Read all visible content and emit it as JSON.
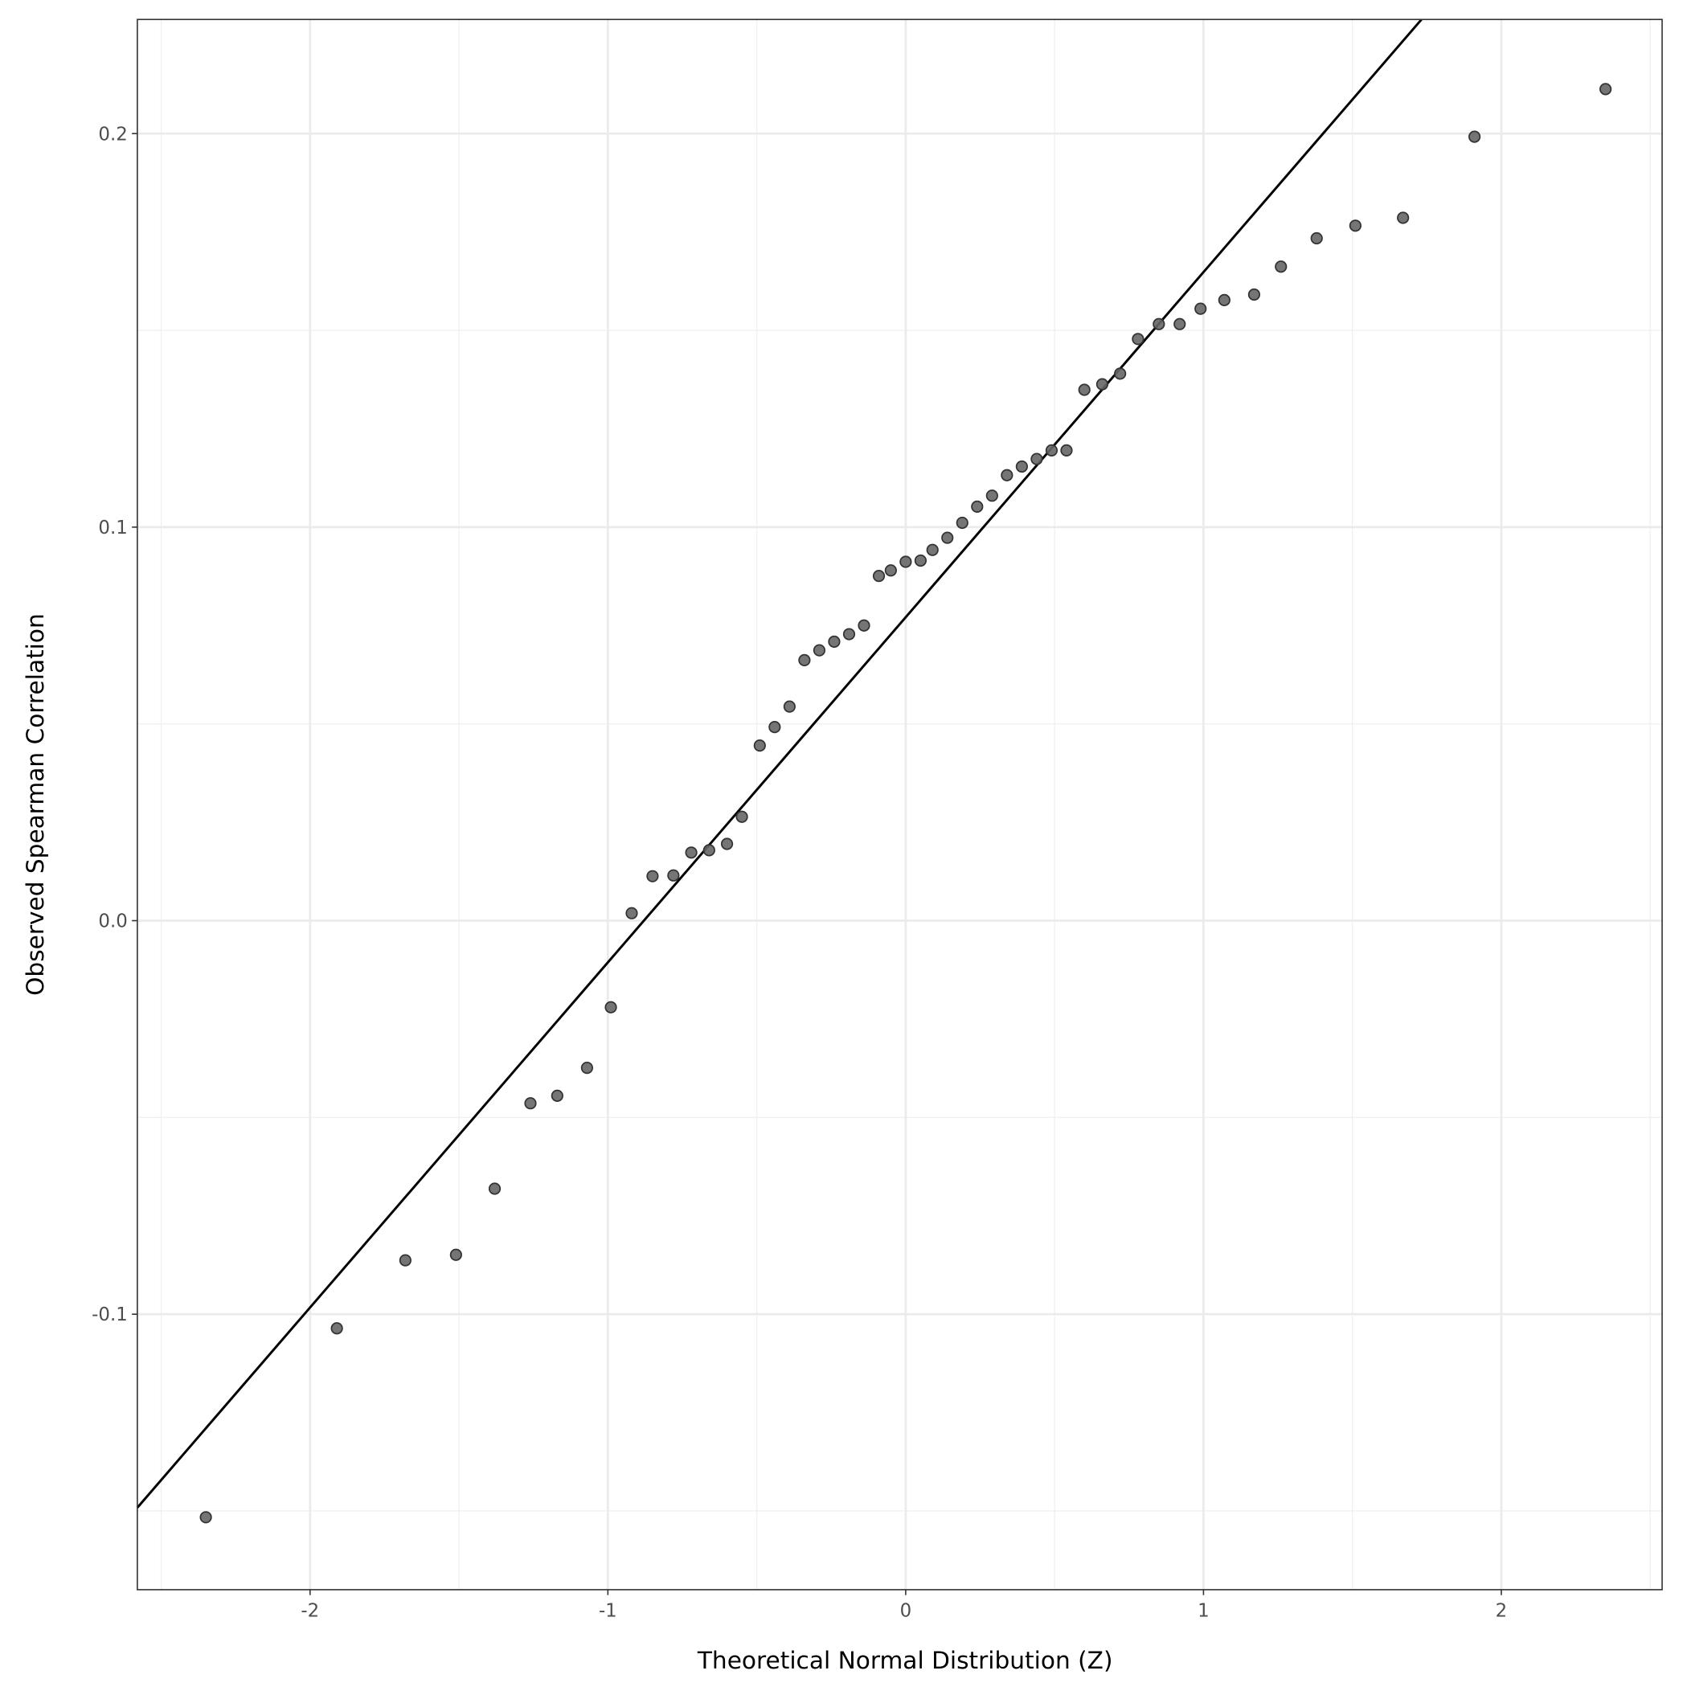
{
  "chart_data": {
    "type": "scatter",
    "title": "",
    "xlabel": "Theoretical Normal Distribution (Z)",
    "ylabel": "Observed Spearman Correlation",
    "xlim": [
      -2.58,
      2.54
    ],
    "ylim": [
      -0.17,
      0.229
    ],
    "x_ticks": [
      -2,
      -1,
      0,
      1,
      2
    ],
    "x_tick_labels": [
      "-2",
      "-1",
      "0",
      "1",
      "2"
    ],
    "y_ticks": [
      -0.1,
      0.0,
      0.1,
      0.2
    ],
    "y_tick_labels": [
      "-0.1",
      "0.0",
      "0.1",
      "0.2"
    ],
    "grid": true,
    "point_color": "#666666",
    "line_color": "#000000",
    "reference_line": {
      "intercept": 0.0771,
      "slope": 0.0877
    },
    "points": [
      [
        -2.35,
        -0.1516
      ],
      [
        -1.91,
        -0.1036
      ],
      [
        -1.68,
        -0.0863
      ],
      [
        -1.51,
        -0.0849
      ],
      [
        -1.38,
        -0.0681
      ],
      [
        -1.26,
        -0.0464
      ],
      [
        -1.17,
        -0.0445
      ],
      [
        -1.07,
        -0.0374
      ],
      [
        -0.99,
        -0.022
      ],
      [
        -0.92,
        0.0019
      ],
      [
        -0.85,
        0.0113
      ],
      [
        -0.78,
        0.0115
      ],
      [
        -0.72,
        0.0173
      ],
      [
        -0.66,
        0.0179
      ],
      [
        -0.6,
        0.0195
      ],
      [
        -0.55,
        0.0264
      ],
      [
        -0.49,
        0.0445
      ],
      [
        -0.44,
        0.0492
      ],
      [
        -0.39,
        0.0544
      ],
      [
        -0.34,
        0.0662
      ],
      [
        -0.29,
        0.0687
      ],
      [
        -0.24,
        0.0709
      ],
      [
        -0.19,
        0.0728
      ],
      [
        -0.14,
        0.075
      ],
      [
        -0.09,
        0.0876
      ],
      [
        -0.05,
        0.089
      ],
      [
        0.0,
        0.0912
      ],
      [
        0.05,
        0.0915
      ],
      [
        0.09,
        0.0942
      ],
      [
        0.14,
        0.0973
      ],
      [
        0.19,
        0.1011
      ],
      [
        0.24,
        0.1052
      ],
      [
        0.29,
        0.108
      ],
      [
        0.34,
        0.1132
      ],
      [
        0.39,
        0.1154
      ],
      [
        0.44,
        0.1173
      ],
      [
        0.49,
        0.1195
      ],
      [
        0.54,
        0.1195
      ],
      [
        0.6,
        0.1349
      ],
      [
        0.66,
        0.1363
      ],
      [
        0.72,
        0.139
      ],
      [
        0.78,
        0.1478
      ],
      [
        0.85,
        0.1516
      ],
      [
        0.92,
        0.1516
      ],
      [
        0.99,
        0.1555
      ],
      [
        1.07,
        0.1577
      ],
      [
        1.17,
        0.1591
      ],
      [
        1.26,
        0.1662
      ],
      [
        1.38,
        0.1734
      ],
      [
        1.51,
        0.1766
      ],
      [
        1.67,
        0.1786
      ],
      [
        1.91,
        0.1992
      ],
      [
        2.35,
        0.2113
      ]
    ]
  }
}
